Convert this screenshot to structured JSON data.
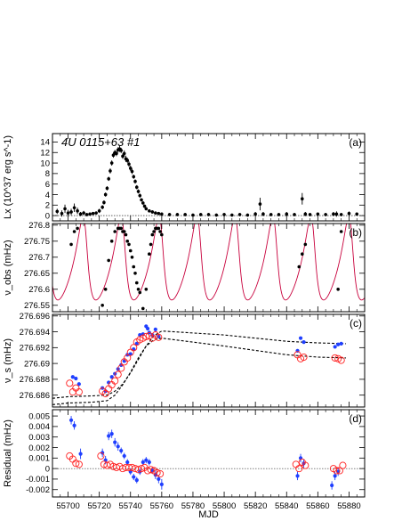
{
  "chart_data": {
    "type": "scatter",
    "xlabel": "MJD",
    "xlim": [
      55690,
      55890
    ],
    "x_ticks": [
      55700,
      55720,
      55740,
      55760,
      55780,
      55800,
      55820,
      55840,
      55860,
      55880
    ],
    "x_tick_labels": [
      "55700",
      "55720",
      "55740",
      "55760",
      "55780",
      "55800",
      "55820",
      "55840",
      "55860",
      "55880"
    ],
    "panels": [
      {
        "id": "a",
        "label": "(a)",
        "title": "4U 0115+63 #1",
        "ylabel": "Lx (10^37 erg s^-1)",
        "ylim": [
          -1,
          15.6
        ],
        "y_ticks": [
          0,
          2,
          4,
          6,
          8,
          10,
          12,
          14
        ],
        "y_tick_labels": [
          "0",
          "2",
          "4",
          "6",
          "8",
          "10",
          "12",
          "14"
        ],
        "reference_line": 0,
        "series": [
          {
            "marker": "dot-with-errorbar",
            "color": "#000000",
            "x": [
              55693,
              55696,
              55698,
              55700,
              55702,
              55704,
              55706,
              55708,
              55710,
              55712,
              55714,
              55716,
              55718,
              55720,
              55722,
              55723,
              55724,
              55725,
              55726,
              55727,
              55728,
              55729,
              55730,
              55731,
              55732,
              55733,
              55734,
              55735,
              55736,
              55737,
              55738,
              55739,
              55740,
              55741,
              55742,
              55743,
              55744,
              55745,
              55746,
              55747,
              55748,
              55749,
              55750,
              55752,
              55754,
              55756,
              55758,
              55760,
              55765,
              55770,
              55775,
              55780,
              55785,
              55790,
              55795,
              55800,
              55805,
              55810,
              55815,
              55820,
              55823,
              55825,
              55830,
              55835,
              55840,
              55845,
              55850,
              55852,
              55855,
              55860,
              55865,
              55870,
              55872,
              55875,
              55880,
              55885
            ],
            "y": [
              0.8,
              0.4,
              1.3,
              0.5,
              0.7,
              1.5,
              0.9,
              0.3,
              0.5,
              0.2,
              0.3,
              0.4,
              0.5,
              0.9,
              1.6,
              2.5,
              4.0,
              5.2,
              7.0,
              8.5,
              10.0,
              11.5,
              12.0,
              11.8,
              12.5,
              12.7,
              12.4,
              11.3,
              11.8,
              10.8,
              10.5,
              9.8,
              9.0,
              8.4,
              7.4,
              6.5,
              5.4,
              4.6,
              3.8,
              3.0,
              2.4,
              1.8,
              1.3,
              0.9,
              0.7,
              0.5,
              0.4,
              0.3,
              0.2,
              0.2,
              0.2,
              0.1,
              0.2,
              0.2,
              0.1,
              0.2,
              0.1,
              0.2,
              0.1,
              0.3,
              2.2,
              0.3,
              0.2,
              0.2,
              0.3,
              0.2,
              3.2,
              0.3,
              0.2,
              0.3,
              0.2,
              0.3,
              0.3,
              0.2,
              0.4,
              0.3
            ],
            "yerr": [
              0.5,
              0.6,
              0.8,
              0.6,
              0.6,
              0.8,
              0.6,
              0.4,
              0.4,
              0.3,
              0.3,
              0.3,
              0.3,
              0.4,
              0.4,
              0.4,
              0.4,
              0.4,
              0.4,
              0.5,
              0.5,
              0.5,
              0.5,
              0.5,
              0.5,
              0.6,
              0.5,
              0.5,
              0.6,
              0.6,
              0.5,
              0.5,
              0.5,
              0.5,
              0.4,
              0.4,
              0.4,
              0.4,
              0.4,
              0.3,
              0.3,
              0.3,
              0.3,
              0.3,
              0.3,
              0.3,
              0.3,
              0.3,
              0.3,
              0.3,
              0.3,
              0.3,
              0.3,
              0.3,
              0.3,
              0.3,
              0.3,
              0.3,
              0.3,
              0.4,
              1.2,
              0.4,
              0.3,
              0.3,
              0.4,
              0.3,
              1.1,
              0.4,
              0.3,
              0.3,
              0.3,
              0.4,
              0.5,
              0.3,
              0.4,
              0.3
            ]
          }
        ]
      },
      {
        "id": "b",
        "label": "(b)",
        "ylabel": "ν_obs (mHz)",
        "ylim": [
          276.53,
          276.805
        ],
        "y_ticks": [
          276.55,
          276.6,
          276.65,
          276.7,
          276.75,
          276.8
        ],
        "y_tick_labels": [
          "276.55",
          "276.6",
          "276.65",
          "276.7",
          "276.75",
          "276.8"
        ],
        "orbit_model": {
          "color": "#c8003c",
          "nu0_mHz": 276.667,
          "semi_amplitude_mHz": 0.13,
          "period_d": 24.32,
          "eccentricity": 0.34,
          "omega_deg": 48,
          "periastron_mjd": 55711.2
        },
        "series": [
          {
            "marker": "dot",
            "color": "#000000",
            "x": [
              55702,
              55704,
              55706,
              55722,
              55724,
              55726,
              55728,
              55730,
              55732,
              55733,
              55734,
              55735,
              55736,
              55737,
              55738,
              55739,
              55740,
              55741,
              55742,
              55743,
              55744,
              55745,
              55746,
              55748,
              55750,
              55752,
              55753,
              55754,
              55755,
              55756,
              55757,
              55758,
              55759,
              55760,
              55848,
              55850,
              55852,
              55873,
              55875
            ],
            "y": [
              276.74,
              276.78,
              276.79,
              276.55,
              276.6,
              276.69,
              276.75,
              276.78,
              276.79,
              276.79,
              276.79,
              276.78,
              276.78,
              276.77,
              276.75,
              276.74,
              276.72,
              276.7,
              276.67,
              276.65,
              276.62,
              276.6,
              276.59,
              276.54,
              276.6,
              276.71,
              276.74,
              276.77,
              276.78,
              276.79,
              276.79,
              276.79,
              276.78,
              276.77,
              276.67,
              276.71,
              276.74,
              276.6,
              276.78
            ]
          }
        ]
      },
      {
        "id": "c",
        "label": "(c)",
        "ylabel": "ν_s (mHz)",
        "ylim": [
          276.6845,
          276.6962
        ],
        "y_ticks": [
          276.686,
          276.688,
          276.69,
          276.692,
          276.694,
          276.696
        ],
        "y_tick_labels": [
          "276.686",
          "276.688",
          "276.69",
          "276.692",
          "276.694",
          "276.696"
        ],
        "model_curves": [
          {
            "style": "dashed",
            "color": "#000000",
            "x": [
              55690,
              55700,
              55715,
              55725,
              55730,
              55735,
              55740,
              55745,
              55750,
              55755,
              55760,
              55800,
              55840,
              55860,
              55878
            ],
            "y": [
              276.6856,
              276.6858,
              276.6859,
              276.686,
              276.6865,
              276.6874,
              276.6888,
              276.6905,
              276.6922,
              276.6935,
              276.6941,
              276.6936,
              276.6928,
              276.6926,
              276.6925
            ]
          },
          {
            "style": "dashed",
            "color": "#000000",
            "x": [
              55690,
              55700,
              55715,
              55725,
              55730,
              55735,
              55740,
              55745,
              55750,
              55755,
              55760,
              55800,
              55840,
              55860,
              55878
            ],
            "y": [
              276.6848,
              276.685,
              276.6851,
              276.6853,
              276.686,
              276.6873,
              276.6889,
              276.6907,
              276.6922,
              276.693,
              276.6932,
              276.6922,
              276.6911,
              276.6908,
              276.6907
            ]
          }
        ],
        "series": [
          {
            "marker": "filled-circle",
            "color": "#1f3fff",
            "x": [
              55703,
              55705,
              55707,
              55722,
              55724,
              55726,
              55728,
              55730,
              55732,
              55734,
              55736,
              55738,
              55740,
              55742,
              55744,
              55746,
              55748,
              55750,
              55751,
              55752,
              55754,
              55756,
              55758,
              55847,
              55849,
              55851,
              55871,
              55873,
              55875
            ],
            "y": [
              276.6883,
              276.6881,
              276.6874,
              276.6869,
              276.6865,
              276.6876,
              276.6883,
              276.6887,
              276.6893,
              276.6898,
              276.6903,
              276.6911,
              276.6912,
              276.6918,
              276.6925,
              276.6936,
              276.6937,
              276.6947,
              276.6944,
              276.6939,
              276.6936,
              276.6943,
              276.6934,
              276.6916,
              276.6932,
              276.6927,
              276.6921,
              276.6924,
              276.6925
            ]
          },
          {
            "marker": "open-circle",
            "color": "#ff2020",
            "x": [
              55701,
              55703,
              55705,
              55707,
              55722,
              55724,
              55726,
              55728,
              55730,
              55732,
              55734,
              55736,
              55738,
              55740,
              55742,
              55744,
              55746,
              55748,
              55750,
              55752,
              55754,
              55756,
              55758,
              55847,
              55849,
              55851,
              55871,
              55873,
              55875
            ],
            "y": [
              276.6875,
              276.6864,
              276.6869,
              276.6864,
              276.6865,
              276.6862,
              276.6868,
              276.6873,
              276.6878,
              276.6886,
              276.6894,
              276.6902,
              276.6907,
              276.6914,
              276.692,
              276.6927,
              276.693,
              276.6932,
              276.6934,
              276.6935,
              276.6932,
              276.6936,
              276.6933,
              276.6911,
              276.6906,
              276.6908,
              276.6907,
              276.6906,
              276.6904
            ]
          }
        ]
      },
      {
        "id": "d",
        "label": "(d)",
        "ylabel": "Residual (mHz)",
        "ylim": [
          -0.0027,
          0.0056
        ],
        "y_ticks": [
          -0.002,
          -0.001,
          0,
          0.001,
          0.002,
          0.003,
          0.004,
          0.005
        ],
        "y_tick_labels": [
          "-0.002",
          "-0.001",
          "0",
          "0.001",
          "0.002",
          "0.003",
          "0.004",
          "0.005"
        ],
        "reference_line": 0,
        "series": [
          {
            "marker": "filled-circle-with-errorbar",
            "color": "#1f3fff",
            "x": [
              55702,
              55704,
              55708,
              55722,
              55724,
              55726,
              55728,
              55730,
              55732,
              55734,
              55736,
              55738,
              55740,
              55742,
              55744,
              55746,
              55748,
              55750,
              55752,
              55754,
              55756,
              55758,
              55760,
              55847,
              55849,
              55851,
              55869,
              55871,
              55873
            ],
            "y": [
              0.0046,
              0.0041,
              0.0014,
              0.0015,
              0.0008,
              0.0031,
              0.0033,
              0.0025,
              0.0021,
              0.0017,
              0.0012,
              0.0006,
              -0.0003,
              -0.0008,
              -0.0011,
              -0.0003,
              0.0006,
              0.0008,
              0.0006,
              -0.0002,
              -0.0006,
              -0.001,
              -0.0015,
              -0.0007,
              0.001,
              0.0005,
              -0.0016,
              -0.0007,
              -0.0003
            ],
            "yerr": [
              0.0004,
              0.0004,
              0.0005,
              0.0004,
              0.0004,
              0.0004,
              0.0004,
              0.0004,
              0.0004,
              0.0003,
              0.0003,
              0.0003,
              0.0003,
              0.0003,
              0.0003,
              0.0003,
              0.0003,
              0.0003,
              0.0003,
              0.0003,
              0.0004,
              0.0004,
              0.0005,
              0.0004,
              0.0004,
              0.0004,
              0.0004,
              0.0004,
              0.0004
            ]
          },
          {
            "marker": "open-circle",
            "color": "#ff2020",
            "x": [
              55701,
              55703,
              55705,
              55707,
              55721,
              55723,
              55725,
              55727,
              55729,
              55731,
              55733,
              55735,
              55737,
              55739,
              55741,
              55743,
              55745,
              55747,
              55749,
              55751,
              55753,
              55755,
              55757,
              55759,
              55846,
              55848,
              55850,
              55852,
              55870,
              55872,
              55874,
              55876
            ],
            "y": [
              0.0012,
              0.0009,
              0.0005,
              0.0004,
              0.0012,
              0.0004,
              0.0003,
              0.0004,
              0.0002,
              0.0001,
              0.0002,
              0,
              0.0001,
              0.0001,
              0.0001,
              0,
              -0.0001,
              0,
              0.0001,
              -0.0002,
              -0.0001,
              -0.0002,
              -0.0004,
              -0.0005,
              0.0004,
              0,
              0.0006,
              0.0003,
              0,
              -0.0002,
              -0.0002,
              0.0003
            ]
          }
        ]
      }
    ]
  }
}
